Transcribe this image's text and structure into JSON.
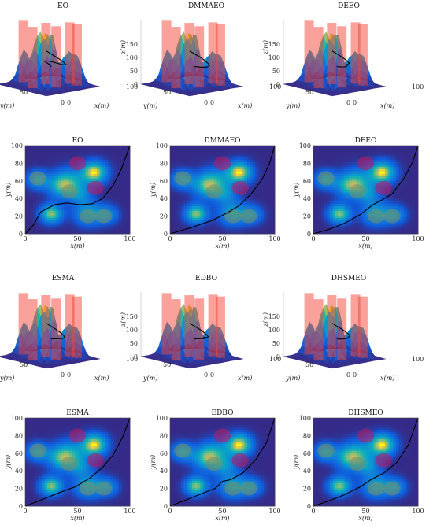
{
  "figure": {
    "rows": [
      {
        "kind": "3d",
        "panels": [
          {
            "title": "EO"
          },
          {
            "title": "DMMAEO"
          },
          {
            "title": "DEEO"
          }
        ]
      },
      {
        "kind": "2d",
        "panels": [
          {
            "title": "EO"
          },
          {
            "title": "DMMAEO"
          },
          {
            "title": "DEEO"
          }
        ]
      },
      {
        "kind": "3d",
        "panels": [
          {
            "title": "ESMA"
          },
          {
            "title": "EDBO"
          },
          {
            "title": "DHSMEO"
          }
        ]
      },
      {
        "kind": "2d",
        "panels": [
          {
            "title": "ESMA"
          },
          {
            "title": "EDBO"
          },
          {
            "title": "DHSMEO"
          }
        ]
      }
    ]
  },
  "chart_data": [
    {
      "type": "surface3d",
      "axes": {
        "xlabel": "x(m)",
        "ylabel": "y(m)",
        "zlabel": "z(m)",
        "xticks": [
          "0",
          "100"
        ],
        "yticks": [
          "50",
          "0"
        ],
        "zticks": [
          "0",
          "50",
          "100",
          "150"
        ]
      }
    },
    {
      "type": "heatmap",
      "axes": {
        "xlabel": "x(m)",
        "ylabel": "y(m)",
        "xticks": [
          "0",
          "50",
          "100"
        ],
        "yticks": [
          "0",
          "20",
          "40",
          "60",
          "80",
          "100"
        ],
        "xlim": [
          0,
          100
        ],
        "ylim": [
          0,
          100
        ]
      },
      "terrain_peaks": [
        {
          "x": 66,
          "y": 70,
          "amp": 1.0,
          "s": 8
        },
        {
          "x": 25,
          "y": 23,
          "amp": 0.85,
          "s": 7
        },
        {
          "x": 35,
          "y": 55,
          "amp": 0.7,
          "s": 9
        },
        {
          "x": 12,
          "y": 62,
          "amp": 0.55,
          "s": 7
        },
        {
          "x": 60,
          "y": 23,
          "amp": 0.55,
          "s": 9
        },
        {
          "x": 78,
          "y": 22,
          "amp": 0.45,
          "s": 7
        },
        {
          "x": 52,
          "y": 45,
          "amp": 0.4,
          "s": 8
        },
        {
          "x": 45,
          "y": 62,
          "amp": 0.35,
          "s": 10
        }
      ],
      "obstacles": [
        {
          "x": 50,
          "y": 80,
          "r": 8,
          "color": "#c2185b"
        },
        {
          "x": 12,
          "y": 63,
          "r": 8,
          "color": "#7a8a6a"
        },
        {
          "x": 42,
          "y": 48,
          "r": 8,
          "color": "#7a8a6a"
        },
        {
          "x": 67,
          "y": 52,
          "r": 8,
          "color": "#c2185b"
        },
        {
          "x": 60,
          "y": 20,
          "r": 8,
          "color": "#7a8a6a"
        },
        {
          "x": 75,
          "y": 20,
          "r": 8,
          "color": "#7a8a6a"
        }
      ],
      "paths": {
        "EO": [
          [
            0,
            0
          ],
          [
            8,
            10
          ],
          [
            15,
            25
          ],
          [
            28,
            33
          ],
          [
            40,
            35
          ],
          [
            52,
            33
          ],
          [
            64,
            34
          ],
          [
            74,
            40
          ],
          [
            84,
            55
          ],
          [
            92,
            74
          ],
          [
            100,
            100
          ]
        ],
        "DMMAEO": [
          [
            0,
            0
          ],
          [
            20,
            7
          ],
          [
            40,
            15
          ],
          [
            55,
            24
          ],
          [
            66,
            32
          ],
          [
            78,
            46
          ],
          [
            88,
            62
          ],
          [
            95,
            80
          ],
          [
            100,
            100
          ]
        ],
        "DEEO": [
          [
            0,
            0
          ],
          [
            15,
            5
          ],
          [
            30,
            12
          ],
          [
            45,
            22
          ],
          [
            57,
            33
          ],
          [
            65,
            38
          ],
          [
            75,
            45
          ],
          [
            86,
            62
          ],
          [
            95,
            82
          ],
          [
            100,
            100
          ]
        ],
        "ESMA": [
          [
            0,
            0
          ],
          [
            15,
            7
          ],
          [
            32,
            15
          ],
          [
            48,
            22
          ],
          [
            62,
            32
          ],
          [
            74,
            44
          ],
          [
            84,
            58
          ],
          [
            93,
            78
          ],
          [
            100,
            100
          ]
        ],
        "EDBO": [
          [
            0,
            0
          ],
          [
            15,
            7
          ],
          [
            30,
            14
          ],
          [
            43,
            20
          ],
          [
            50,
            28
          ],
          [
            58,
            30
          ],
          [
            70,
            38
          ],
          [
            82,
            53
          ],
          [
            92,
            72
          ],
          [
            100,
            100
          ]
        ],
        "DHSMEO": [
          [
            0,
            0
          ],
          [
            15,
            6
          ],
          [
            30,
            13
          ],
          [
            45,
            22
          ],
          [
            55,
            30
          ],
          [
            68,
            38
          ],
          [
            80,
            50
          ],
          [
            91,
            70
          ],
          [
            100,
            100
          ]
        ]
      }
    }
  ],
  "colors": {
    "field_low": "#3a2aa0",
    "field_mid": "#1f9fd8",
    "field_high": "#f7e820",
    "obstacle_3d": "#f44336",
    "path": "#000000"
  }
}
